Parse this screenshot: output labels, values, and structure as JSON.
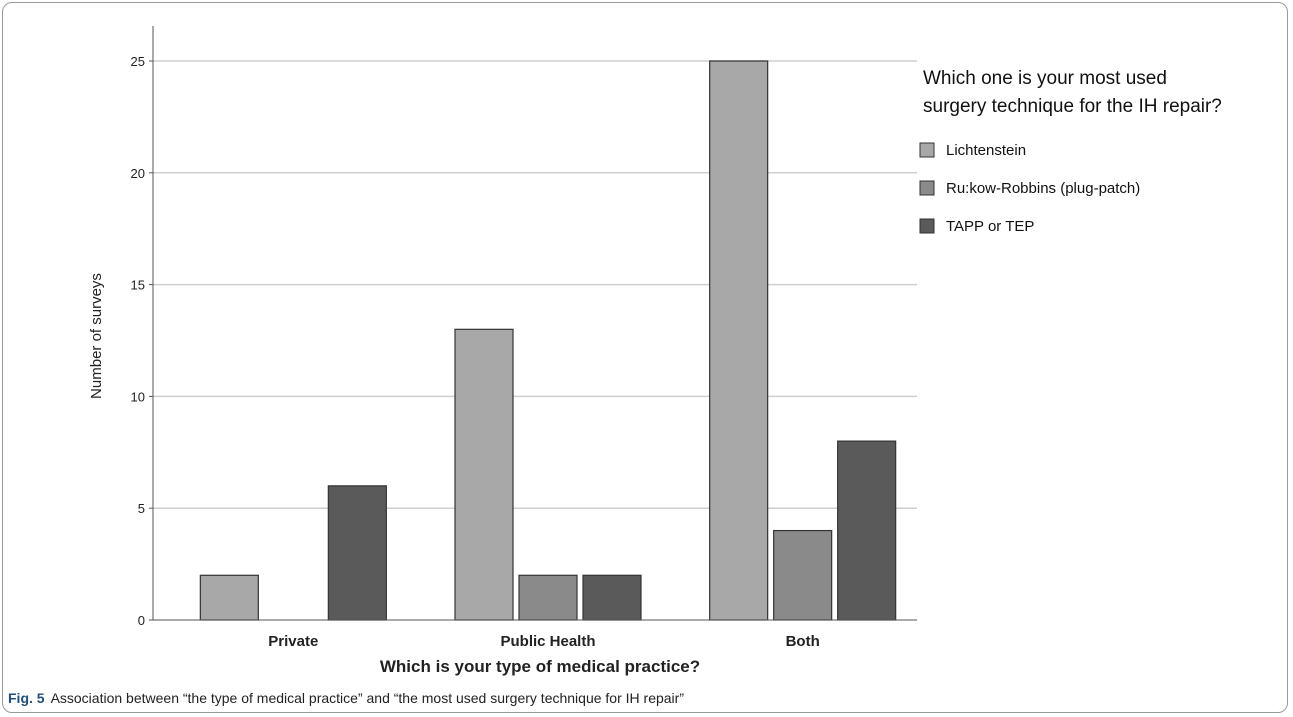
{
  "chart_data": {
    "type": "bar",
    "categories": [
      "Private",
      "Public Health",
      "Both"
    ],
    "series": [
      {
        "name": "Lichtenstein",
        "values": [
          2,
          13,
          25
        ],
        "color": "#a8a8a8"
      },
      {
        "name": "Ru:kow-Robbins (plug-patch)",
        "values": [
          0,
          2,
          4
        ],
        "color": "#8a8a8a"
      },
      {
        "name": "TAPP or TEP",
        "values": [
          6,
          2,
          8
        ],
        "color": "#5a5a5a"
      }
    ],
    "xlabel": "Which is your type of medical practice?",
    "ylabel": "Number of surveys",
    "ylim": [
      0,
      26
    ],
    "yticks": [
      0,
      5,
      10,
      15,
      20,
      25
    ],
    "grid": true,
    "legend": {
      "title_lines": [
        "Which one is your most used",
        "surgery technique for the IH repair?"
      ],
      "placement": "top-right"
    }
  },
  "caption": {
    "label": "Fig. 5",
    "text": "Association between “the type of medical practice” and “the most used surgery technique for IH repair”"
  }
}
